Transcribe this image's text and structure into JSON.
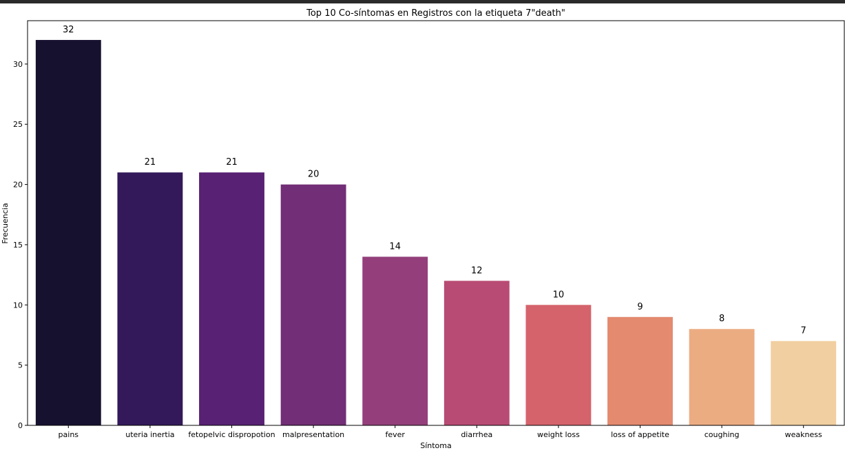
{
  "chart_data": {
    "type": "bar",
    "title": "Top 10 Co-síntomas en Registros con la etiqueta 7\"death\"",
    "xlabel": "Síntoma",
    "ylabel": "Frecuencia",
    "categories": [
      "pains",
      "uteria inertia",
      "fetopelvic dispropotion",
      "malpresentation",
      "fever",
      "diarrhea",
      "weight loss",
      "loss of appetite",
      "coughing",
      "weakness"
    ],
    "values": [
      32,
      21,
      21,
      20,
      14,
      12,
      10,
      9,
      8,
      7
    ],
    "colors": [
      "#171130",
      "#33195a",
      "#582174",
      "#722e76",
      "#943f7b",
      "#b84b74",
      "#d5636c",
      "#e38a6f",
      "#ecac82",
      "#f1cfa0"
    ],
    "ylim": [
      0,
      33.6
    ],
    "yticks": [
      0,
      5,
      10,
      15,
      20,
      25,
      30
    ],
    "grid": false,
    "legend": "none"
  }
}
